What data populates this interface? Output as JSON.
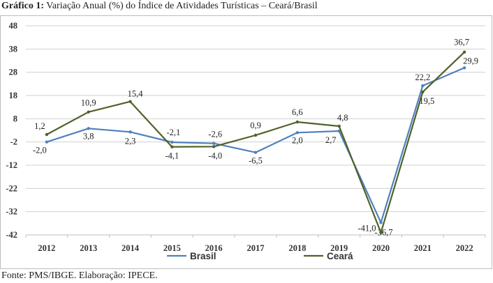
{
  "title": {
    "bold": "Gráfico 1:",
    "text": "Variação Anual (%) do Índice de Atividades Turísticas – Ceará/Brasil"
  },
  "source": "Fonte: PMS/IBGE. Elaboração: IPECE.",
  "chart_data": {
    "type": "line",
    "title": "Variação Anual (%) do Índice de Atividades Turísticas – Ceará/Brasil",
    "xlabel": "",
    "ylabel": "",
    "categories": [
      "2012",
      "2013",
      "2014",
      "2015",
      "2016",
      "2017",
      "2018",
      "2019",
      "2020",
      "2021",
      "2022"
    ],
    "ylim": [
      -42,
      48
    ],
    "yticks": [
      48,
      38,
      28,
      18,
      8,
      -2,
      -12,
      -22,
      -32,
      -42
    ],
    "grid": "horizontal",
    "legend_position": "bottom",
    "series": [
      {
        "name": "Brasil",
        "color": "#4f81bd",
        "values": [
          -2.0,
          3.8,
          2.3,
          -2.1,
          -2.6,
          -6.5,
          2.0,
          2.7,
          -36.7,
          22.2,
          29.9
        ],
        "labels": [
          "-2,0",
          "3,8",
          "2,3",
          "-2,1",
          "-2,6",
          "-6,5",
          "2,0",
          "2,7",
          "-36,7",
          "22,2",
          "29,9"
        ]
      },
      {
        "name": "Ceará",
        "color": "#4f6228",
        "values": [
          1.2,
          10.9,
          15.4,
          -4.1,
          -4.0,
          0.9,
          6.6,
          4.8,
          -41.0,
          19.5,
          36.7
        ],
        "labels": [
          "1,2",
          "10,9",
          "15,4",
          "-4,1",
          "-4,0",
          "0,9",
          "6,6",
          "4,8",
          "-41,0",
          "19,5",
          "36,7"
        ]
      }
    ]
  }
}
